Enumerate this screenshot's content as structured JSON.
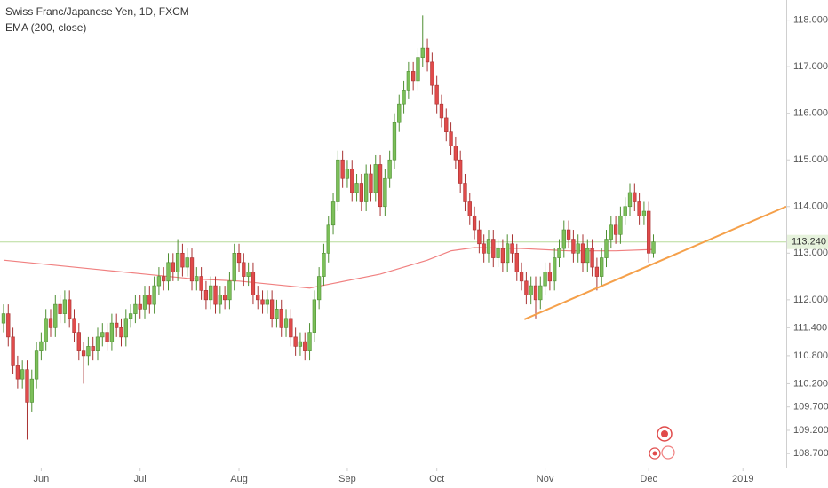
{
  "chart_data": {
    "type": "candlestick",
    "title": "Swiss Franc/Japanese Yen, 1D, FXCM",
    "up_color": "#7cbf5a",
    "down_color": "#e04b4b",
    "open": [
      111.5,
      111.7,
      111.2,
      110.6,
      110.3,
      110.5,
      109.8,
      110.3,
      110.9,
      111.1,
      111.6,
      111.4,
      111.9,
      111.7,
      112.0,
      111.6,
      111.3,
      110.9,
      110.8,
      111.0,
      110.9,
      111.2,
      111.3,
      111.1,
      111.5,
      111.4,
      111.2,
      111.6,
      111.7,
      111.9,
      111.8,
      112.1,
      111.9,
      112.3,
      112.5,
      112.4,
      112.8,
      112.6,
      113.0,
      112.7,
      112.9,
      112.4,
      112.5,
      112.2,
      112.0,
      112.3,
      111.9,
      112.1,
      112.0,
      112.4,
      113.0,
      112.8,
      112.5,
      112.6,
      112.1,
      112.0,
      111.9,
      112.0,
      111.6,
      111.8,
      111.4,
      111.6,
      111.2,
      111.0,
      111.1,
      110.9,
      111.3,
      112.0,
      112.5,
      113.0,
      113.6,
      114.1,
      115.0,
      114.6,
      114.8,
      114.3,
      114.5,
      114.1,
      114.7,
      114.3,
      114.9,
      114.0,
      114.6,
      115.0,
      115.8,
      116.2,
      116.5,
      116.9,
      116.7,
      117.2,
      117.4,
      117.1,
      116.6,
      116.2,
      115.9,
      115.6,
      115.3,
      115.0,
      114.5,
      114.1,
      113.8,
      113.5,
      113.2,
      113.0,
      113.3,
      112.9,
      113.1,
      112.8,
      113.2,
      113.0,
      112.6,
      112.4,
      112.1,
      112.3,
      112.0,
      112.3,
      112.6,
      112.4,
      112.9,
      113.1,
      113.5,
      113.3,
      113.0,
      113.2,
      112.8,
      113.1,
      112.7,
      112.5,
      112.9,
      113.3,
      113.6,
      113.4,
      113.8,
      114.0,
      114.3,
      114.1,
      113.8,
      113.9,
      113.0
    ],
    "high": [
      111.9,
      111.9,
      111.4,
      110.8,
      110.7,
      110.7,
      110.5,
      111.1,
      111.3,
      111.8,
      111.8,
      112.1,
      112.1,
      112.2,
      112.2,
      111.8,
      111.5,
      111.1,
      111.2,
      111.2,
      111.4,
      111.5,
      111.5,
      111.7,
      111.7,
      111.6,
      111.8,
      111.9,
      112.1,
      112.1,
      112.3,
      112.3,
      112.5,
      112.7,
      112.7,
      113.0,
      113.0,
      113.3,
      113.2,
      113.1,
      113.1,
      112.7,
      112.7,
      112.4,
      112.5,
      112.5,
      112.3,
      112.3,
      112.6,
      113.2,
      113.2,
      113.0,
      112.8,
      112.8,
      112.3,
      112.2,
      112.2,
      112.2,
      112.0,
      112.0,
      111.8,
      111.8,
      111.4,
      111.3,
      111.3,
      111.5,
      112.2,
      112.7,
      113.2,
      113.8,
      114.3,
      115.2,
      115.2,
      115.0,
      115.0,
      114.7,
      114.7,
      114.9,
      114.9,
      115.1,
      115.1,
      114.8,
      115.2,
      116.0,
      116.4,
      116.7,
      117.1,
      117.1,
      117.4,
      118.1,
      117.6,
      117.3,
      116.8,
      116.4,
      116.1,
      115.8,
      115.5,
      115.2,
      114.7,
      114.3,
      114.0,
      113.7,
      113.4,
      113.5,
      113.5,
      113.3,
      113.3,
      113.4,
      113.4,
      113.2,
      112.8,
      112.6,
      112.5,
      112.5,
      112.5,
      112.8,
      112.8,
      113.1,
      113.3,
      113.7,
      113.7,
      113.5,
      113.4,
      113.4,
      113.3,
      113.3,
      112.9,
      113.1,
      113.5,
      113.8,
      113.8,
      114.0,
      114.2,
      114.5,
      114.5,
      114.3,
      114.1,
      114.1,
      113.4
    ],
    "low": [
      111.3,
      111.0,
      110.4,
      110.1,
      110.1,
      109.0,
      109.6,
      110.1,
      110.7,
      110.9,
      111.2,
      111.2,
      111.5,
      111.5,
      111.4,
      111.1,
      110.7,
      110.2,
      110.6,
      110.7,
      110.7,
      111.0,
      110.9,
      110.9,
      111.2,
      111.0,
      111.0,
      111.4,
      111.5,
      111.6,
      111.6,
      111.7,
      111.7,
      112.1,
      112.2,
      112.2,
      112.4,
      112.4,
      112.5,
      112.5,
      112.2,
      112.2,
      112.0,
      111.8,
      111.8,
      111.7,
      111.7,
      111.8,
      111.8,
      112.2,
      112.6,
      112.3,
      112.3,
      111.9,
      111.8,
      111.7,
      111.7,
      111.4,
      111.4,
      111.2,
      111.2,
      111.0,
      110.8,
      110.8,
      110.7,
      110.7,
      111.1,
      111.8,
      112.3,
      112.8,
      113.4,
      113.9,
      114.4,
      114.4,
      114.1,
      114.1,
      113.9,
      113.9,
      114.1,
      114.1,
      113.8,
      113.8,
      114.4,
      114.8,
      115.6,
      116.0,
      116.3,
      116.5,
      116.5,
      117.0,
      116.9,
      116.4,
      116.0,
      115.7,
      115.4,
      115.1,
      114.8,
      114.3,
      113.9,
      113.6,
      113.3,
      113.0,
      112.8,
      112.8,
      112.7,
      112.7,
      112.6,
      112.6,
      112.8,
      112.4,
      112.2,
      111.9,
      111.9,
      111.6,
      111.8,
      112.1,
      112.2,
      112.2,
      112.7,
      112.9,
      113.1,
      112.8,
      112.8,
      112.6,
      112.6,
      112.5,
      112.2,
      112.3,
      112.7,
      113.1,
      113.2,
      113.2,
      113.6,
      113.8,
      113.9,
      113.6,
      113.6,
      112.8,
      112.9
    ],
    "close": [
      111.7,
      111.2,
      110.6,
      110.3,
      110.5,
      109.8,
      110.3,
      110.9,
      111.1,
      111.6,
      111.4,
      111.9,
      111.7,
      112.0,
      111.6,
      111.3,
      110.9,
      110.8,
      111.0,
      110.9,
      111.2,
      111.3,
      111.1,
      111.5,
      111.4,
      111.2,
      111.6,
      111.7,
      111.9,
      111.8,
      112.1,
      111.9,
      112.3,
      112.5,
      112.4,
      112.8,
      112.6,
      113.0,
      112.7,
      112.9,
      112.4,
      112.5,
      112.2,
      112.0,
      112.3,
      111.9,
      112.1,
      112.0,
      112.4,
      113.0,
      112.8,
      112.5,
      112.6,
      112.1,
      112.0,
      111.9,
      112.0,
      111.6,
      111.8,
      111.4,
      111.6,
      111.2,
      111.0,
      111.1,
      110.9,
      111.3,
      112.0,
      112.5,
      113.0,
      113.6,
      114.1,
      115.0,
      114.6,
      114.8,
      114.3,
      114.5,
      114.1,
      114.7,
      114.3,
      114.9,
      114.0,
      114.6,
      115.0,
      115.8,
      116.2,
      116.5,
      116.9,
      116.7,
      117.2,
      117.4,
      117.1,
      116.6,
      116.2,
      115.9,
      115.6,
      115.3,
      115.0,
      114.5,
      114.1,
      113.8,
      113.5,
      113.2,
      113.0,
      113.3,
      112.9,
      113.1,
      112.8,
      113.2,
      113.0,
      112.6,
      112.4,
      112.1,
      112.3,
      112.0,
      112.3,
      112.6,
      112.4,
      112.9,
      113.1,
      113.5,
      113.3,
      113.0,
      113.2,
      112.8,
      113.1,
      112.7,
      112.5,
      112.9,
      113.3,
      113.6,
      113.4,
      113.8,
      114.0,
      114.3,
      114.1,
      113.8,
      113.9,
      113.0,
      113.24
    ],
    "ema": {
      "name": "EMA (200, close)",
      "color": "#f08080",
      "x": [
        0,
        10,
        20,
        30,
        40,
        50,
        60,
        65,
        70,
        80,
        90,
        95,
        100,
        110,
        120,
        130,
        138
      ],
      "values": [
        112.85,
        112.75,
        112.65,
        112.55,
        112.45,
        112.4,
        112.3,
        112.25,
        112.35,
        112.55,
        112.85,
        113.05,
        113.12,
        113.1,
        113.05,
        113.05,
        113.08
      ]
    },
    "trendline": {
      "color": "#f5a04a",
      "x": [
        110.6,
        166.2
      ],
      "values": [
        111.58,
        114.0
      ]
    },
    "last_price": {
      "value": 113.24,
      "label": "113.240",
      "color": "#b7dc9a"
    },
    "xlim": [
      -0.75,
      166.2
    ],
    "xticks": [
      {
        "value": 8,
        "label": "Jun"
      },
      {
        "value": 29,
        "label": "Jul"
      },
      {
        "value": 50,
        "label": "Aug"
      },
      {
        "value": 73,
        "label": "Sep"
      },
      {
        "value": 92,
        "label": "Oct"
      },
      {
        "value": 115,
        "label": "Nov"
      },
      {
        "value": 137,
        "label": "Dec"
      },
      {
        "value": 157,
        "label": "2019"
      }
    ],
    "ylim": [
      108.4,
      118.43
    ],
    "yticks": [
      {
        "value": 118,
        "label": "118.000"
      },
      {
        "value": 117,
        "label": "117.000"
      },
      {
        "value": 116,
        "label": "116.000"
      },
      {
        "value": 115,
        "label": "115.000"
      },
      {
        "value": 114,
        "label": "114.000"
      },
      {
        "value": 113,
        "label": "113.000"
      },
      {
        "value": 112,
        "label": "112.000"
      },
      {
        "value": 111.4,
        "label": "111.400"
      },
      {
        "value": 110.8,
        "label": "110.800"
      },
      {
        "value": 110.2,
        "label": "110.200"
      },
      {
        "value": 109.7,
        "label": "109.700"
      },
      {
        "value": 109.2,
        "label": "109.200"
      },
      {
        "value": 108.7,
        "label": "108.700"
      }
    ]
  }
}
